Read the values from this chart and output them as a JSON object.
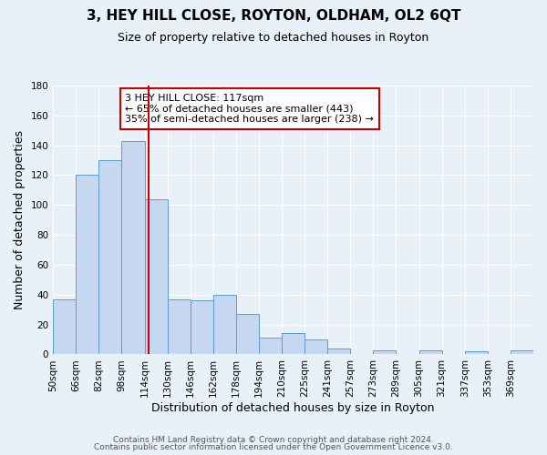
{
  "title": "3, HEY HILL CLOSE, ROYTON, OLDHAM, OL2 6QT",
  "subtitle": "Size of property relative to detached houses in Royton",
  "xlabel": "Distribution of detached houses by size in Royton",
  "ylabel": "Number of detached properties",
  "bin_labels": [
    "50sqm",
    "66sqm",
    "82sqm",
    "98sqm",
    "114sqm",
    "130sqm",
    "146sqm",
    "162sqm",
    "178sqm",
    "194sqm",
    "210sqm",
    "225sqm",
    "241sqm",
    "257sqm",
    "273sqm",
    "289sqm",
    "305sqm",
    "321sqm",
    "337sqm",
    "353sqm",
    "369sqm"
  ],
  "bar_values": [
    37,
    120,
    130,
    143,
    104,
    37,
    36,
    40,
    27,
    11,
    14,
    10,
    4,
    0,
    3,
    0,
    3,
    0,
    2,
    0,
    3
  ],
  "bar_color": "#c5d8f0",
  "bar_edge_color": "#5b9bd5",
  "vline_color": "#cc0000",
  "annotation_text": "3 HEY HILL CLOSE: 117sqm\n← 65% of detached houses are smaller (443)\n35% of semi-detached houses are larger (238) →",
  "annotation_box_color": "white",
  "annotation_box_edge": "#cc0000",
  "ylim": [
    0,
    180
  ],
  "yticks": [
    0,
    20,
    40,
    60,
    80,
    100,
    120,
    140,
    160,
    180
  ],
  "footer1": "Contains HM Land Registry data © Crown copyright and database right 2024.",
  "footer2": "Contains public sector information licensed under the Open Government Licence v3.0.",
  "background_color": "#e8f0f8",
  "plot_background": "#e8f0f8",
  "grid_color": "white",
  "title_fontsize": 11,
  "subtitle_fontsize": 9,
  "axis_label_fontsize": 9,
  "tick_fontsize": 7.5,
  "annotation_fontsize": 8,
  "footer_fontsize": 6.5
}
